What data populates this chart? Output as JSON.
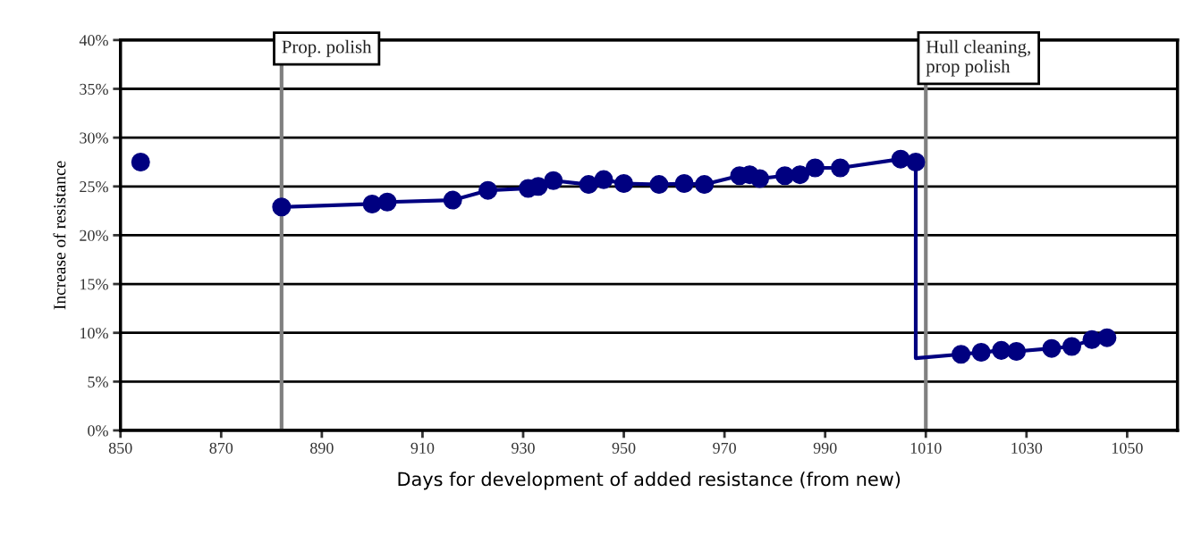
{
  "chart_data": {
    "type": "scatter",
    "xlabel": "Days for development of added resistance (from new)",
    "ylabel": "Increase of resistance",
    "xlim": [
      850,
      1060
    ],
    "xticks": [
      850,
      870,
      890,
      910,
      930,
      950,
      970,
      990,
      1010,
      1030,
      1050
    ],
    "ylim": [
      0,
      40
    ],
    "yticks": [
      {
        "value": 0,
        "label": "0%"
      },
      {
        "value": 5,
        "label": "5%"
      },
      {
        "value": 10,
        "label": "10%"
      },
      {
        "value": 15,
        "label": "15%"
      },
      {
        "value": 20,
        "label": "20%"
      },
      {
        "value": 25,
        "label": "25%"
      },
      {
        "value": 30,
        "label": "30%"
      },
      {
        "value": 35,
        "label": "35%"
      },
      {
        "value": 40,
        "label": "40%"
      }
    ],
    "grid": "y",
    "legend": false,
    "series": [
      {
        "type": "line",
        "marker": "none",
        "color": "#000080",
        "x": [
          882,
          900,
          903,
          916,
          923,
          931,
          933,
          936,
          943,
          946,
          950,
          957,
          962,
          966,
          973,
          975,
          977,
          982,
          985,
          988,
          993,
          1005,
          1008,
          1008,
          1017,
          1021,
          1025,
          1028,
          1035,
          1039,
          1043,
          1046
        ],
        "values": [
          22.9,
          23.2,
          23.4,
          23.6,
          24.6,
          24.8,
          25.0,
          25.6,
          25.2,
          25.7,
          25.3,
          25.2,
          25.3,
          25.2,
          26.1,
          26.2,
          25.8,
          26.1,
          26.2,
          26.9,
          26.9,
          27.8,
          27.5,
          7.4,
          7.8,
          8.0,
          8.2,
          8.1,
          8.4,
          8.6,
          9.3,
          9.5
        ]
      },
      {
        "marker": "circle",
        "color": "#000080",
        "x": [
          854,
          882,
          900,
          903,
          916,
          923,
          931,
          933,
          936,
          943,
          946,
          950,
          957,
          962,
          966,
          973,
          975,
          977,
          982,
          985,
          988,
          993,
          1005,
          1008,
          1017,
          1021,
          1025,
          1028,
          1035,
          1039,
          1043,
          1046
        ],
        "values": [
          27.5,
          22.9,
          23.2,
          23.4,
          23.6,
          24.6,
          24.8,
          25.0,
          25.6,
          25.2,
          25.7,
          25.3,
          25.2,
          25.3,
          25.2,
          26.1,
          26.2,
          25.8,
          26.1,
          26.2,
          26.9,
          26.9,
          27.8,
          27.5,
          7.8,
          8.0,
          8.2,
          8.1,
          8.4,
          8.6,
          9.3,
          9.5
        ]
      }
    ],
    "ref_lines": [
      {
        "axis": "x",
        "value": 882,
        "label": "Prop. polish",
        "color": "#808080"
      },
      {
        "axis": "x",
        "value": 1010,
        "label": "Hull cleaning,\nprop polish",
        "color": "#808080"
      }
    ]
  }
}
